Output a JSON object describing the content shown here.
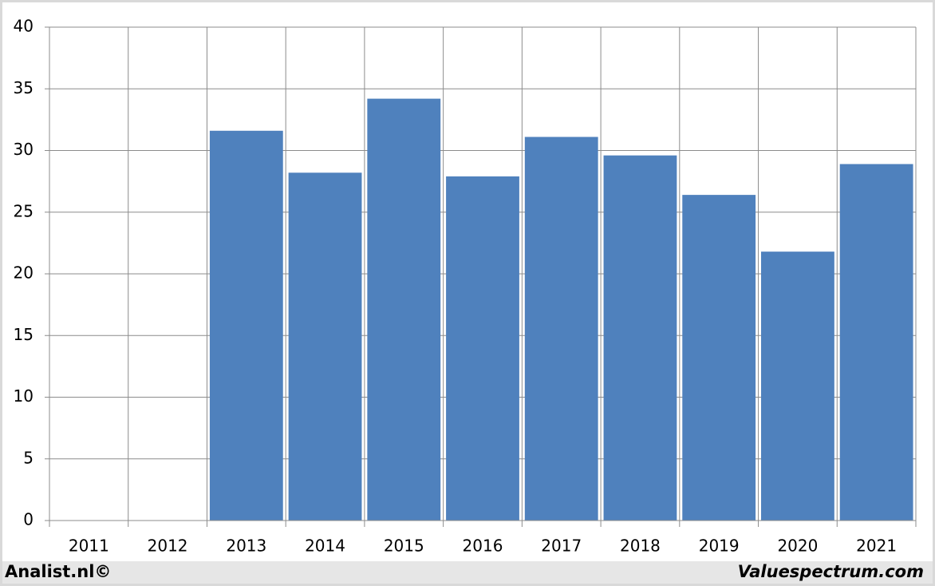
{
  "chart_data": {
    "type": "bar",
    "categories": [
      "2011",
      "2012",
      "2013",
      "2014",
      "2015",
      "2016",
      "2017",
      "2018",
      "2019",
      "2020",
      "2021"
    ],
    "values": [
      null,
      null,
      31.6,
      28.2,
      34.2,
      27.9,
      31.1,
      29.6,
      26.4,
      21.8,
      28.9
    ],
    "color": "#4f81bd",
    "ylim": [
      0,
      40
    ],
    "yticks": [
      0,
      5,
      10,
      15,
      20,
      25,
      30,
      35,
      40
    ],
    "grid": true,
    "footer_left": "Analist.nl©",
    "footer_right": "Valuespectrum.com"
  }
}
